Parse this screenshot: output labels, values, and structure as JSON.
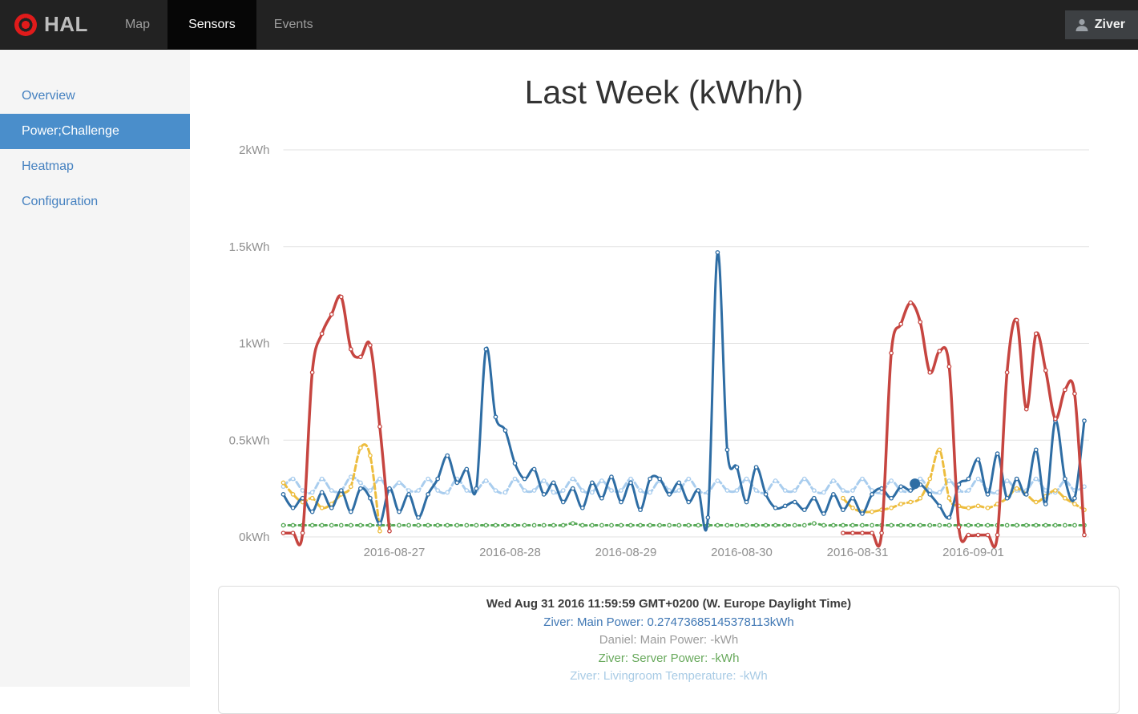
{
  "navbar": {
    "brand": "HAL",
    "items": [
      {
        "label": "Map",
        "active": false
      },
      {
        "label": "Sensors",
        "active": true
      },
      {
        "label": "Events",
        "active": false
      }
    ],
    "user": "Ziver"
  },
  "sidebar": {
    "items": [
      {
        "label": "Overview",
        "active": false
      },
      {
        "label": "Power;Challenge",
        "active": true
      },
      {
        "label": "Heatmap",
        "active": false
      },
      {
        "label": "Configuration",
        "active": false
      }
    ]
  },
  "chart": {
    "title": "Last Week (kWh/h)"
  },
  "chart_data": {
    "type": "line",
    "title": "Last Week (kWh/h)",
    "x_axis": {
      "unit": "hours from 2016-08-26 00:00",
      "range": [
        0,
        168
      ],
      "tick_hours": [
        24,
        48,
        72,
        96,
        120,
        144
      ],
      "tick_labels": [
        "2016-08-27",
        "2016-08-28",
        "2016-08-29",
        "2016-08-30",
        "2016-08-31",
        "2016-09-01"
      ]
    },
    "y_axis": {
      "ticks": [
        0,
        0.5,
        1,
        1.5,
        2
      ],
      "tick_labels": [
        "0kWh",
        "0.5kWh",
        "1kWh",
        "1.5kWh",
        "2kWh"
      ],
      "range": [
        0,
        2.07
      ],
      "unit": "kWh"
    },
    "grid": "horizontal",
    "legend_position": "bottom-panel",
    "start_hour": 1,
    "step_hours": 2,
    "series": [
      {
        "name": "lightblue-livingroom-temperature",
        "color": "#a9cdee",
        "style": "dashed",
        "values": [
          0.26,
          0.3,
          0.24,
          0.23,
          0.3,
          0.24,
          0.24,
          0.31,
          0.28,
          0.24,
          0.3,
          0.24,
          0.28,
          0.24,
          0.24,
          0.3,
          0.24,
          0.23,
          0.3,
          0.24,
          0.24,
          0.29,
          0.24,
          0.23,
          0.3,
          0.24,
          0.24,
          0.29,
          0.23,
          0.24,
          0.3,
          0.24,
          0.23,
          0.29,
          0.24,
          0.24,
          0.3,
          0.24,
          0.23,
          0.29,
          0.24,
          0.24,
          0.3,
          0.24,
          0.23,
          0.29,
          0.24,
          0.24,
          0.3,
          0.24,
          0.23,
          0.29,
          0.24,
          0.24,
          0.3,
          0.24,
          0.23,
          0.29,
          0.24,
          0.24,
          0.3,
          0.24,
          0.23,
          0.29,
          0.24,
          0.24,
          0.3,
          0.24,
          0.23,
          0.29,
          0.24,
          0.24,
          0.3,
          0.24,
          0.23,
          0.29,
          0.24,
          0.24,
          0.3,
          0.24,
          0.23,
          0.29,
          0.24,
          0.26
        ]
      },
      {
        "name": "green-server-power",
        "color": "#57a957",
        "style": "dotted",
        "values": [
          0.06,
          0.06,
          0.06,
          0.06,
          0.06,
          0.06,
          0.06,
          0.06,
          0.06,
          0.06,
          0.06,
          0.06,
          0.06,
          0.06,
          0.06,
          0.06,
          0.06,
          0.06,
          0.06,
          0.06,
          0.06,
          0.06,
          0.06,
          0.06,
          0.06,
          0.06,
          0.06,
          0.06,
          0.06,
          0.06,
          0.07,
          0.06,
          0.06,
          0.06,
          0.06,
          0.06,
          0.06,
          0.06,
          0.06,
          0.06,
          0.06,
          0.06,
          0.06,
          0.06,
          0.06,
          0.06,
          0.06,
          0.06,
          0.06,
          0.06,
          0.06,
          0.06,
          0.06,
          0.06,
          0.06,
          0.07,
          0.06,
          0.06,
          0.06,
          0.06,
          0.06,
          0.06,
          0.06,
          0.06,
          0.06,
          0.06,
          0.06,
          0.06,
          0.06,
          0.06,
          0.06,
          0.06,
          0.06,
          0.06,
          0.06,
          0.06,
          0.06,
          0.06,
          0.06,
          0.06,
          0.06,
          0.06,
          0.06,
          0.06
        ]
      },
      {
        "name": "yellow",
        "color": "#edbd3e",
        "style": "dashed",
        "values": [
          0.28,
          0.22,
          0.18,
          0.2,
          0.15,
          0.17,
          0.22,
          0.26,
          0.46,
          0.42,
          0.03,
          null,
          null,
          null,
          null,
          null,
          null,
          null,
          null,
          null,
          null,
          null,
          null,
          null,
          null,
          null,
          null,
          null,
          null,
          null,
          null,
          null,
          null,
          null,
          null,
          null,
          null,
          null,
          null,
          null,
          null,
          null,
          null,
          null,
          null,
          null,
          null,
          null,
          null,
          null,
          null,
          null,
          null,
          null,
          null,
          null,
          null,
          null,
          0.2,
          0.15,
          0.13,
          0.13,
          0.14,
          0.15,
          0.17,
          0.18,
          0.2,
          0.3,
          0.45,
          0.2,
          0.16,
          0.15,
          0.16,
          0.15,
          0.17,
          0.2,
          0.25,
          0.22,
          0.18,
          0.21,
          0.24,
          0.2,
          0.17,
          0.14
        ]
      },
      {
        "name": "blue-main-power",
        "label": "Ziver: Main Power",
        "color": "#2e6da4",
        "style": "solid",
        "values": [
          0.22,
          0.15,
          0.2,
          0.13,
          0.23,
          0.15,
          0.24,
          0.13,
          0.25,
          0.2,
          0.07,
          0.25,
          0.13,
          0.22,
          0.1,
          0.22,
          0.3,
          0.42,
          0.28,
          0.35,
          0.25,
          0.97,
          0.62,
          0.55,
          0.38,
          0.3,
          0.35,
          0.22,
          0.28,
          0.18,
          0.25,
          0.15,
          0.28,
          0.2,
          0.31,
          0.18,
          0.28,
          0.14,
          0.3,
          0.3,
          0.22,
          0.28,
          0.18,
          0.24,
          0.1,
          1.47,
          0.45,
          0.36,
          0.18,
          0.36,
          0.22,
          0.15,
          0.16,
          0.18,
          0.14,
          0.2,
          0.12,
          0.22,
          0.14,
          0.2,
          0.12,
          0.22,
          0.25,
          0.2,
          0.26,
          0.24,
          0.27,
          0.22,
          0.16,
          0.1,
          0.27,
          0.3,
          0.4,
          0.22,
          0.43,
          0.2,
          0.3,
          0.22,
          0.45,
          0.17,
          0.6,
          0.3,
          0.2,
          0.6
        ]
      },
      {
        "name": "red-main-power",
        "color": "#c64540",
        "style": "solid",
        "values": [
          0.02,
          0.02,
          0.02,
          0.85,
          1.05,
          1.15,
          1.24,
          0.97,
          0.93,
          0.99,
          0.57,
          0.03,
          null,
          null,
          null,
          null,
          null,
          null,
          null,
          null,
          null,
          null,
          null,
          null,
          null,
          null,
          null,
          null,
          null,
          null,
          null,
          null,
          null,
          null,
          null,
          null,
          null,
          null,
          null,
          null,
          null,
          null,
          null,
          null,
          null,
          null,
          null,
          null,
          null,
          null,
          null,
          null,
          null,
          null,
          null,
          null,
          null,
          null,
          0.02,
          0.02,
          0.02,
          0.02,
          0.02,
          0.95,
          1.1,
          1.21,
          1.11,
          0.85,
          0.96,
          0.88,
          0.05,
          0.01,
          0.01,
          0.01,
          0.01,
          0.85,
          1.12,
          0.66,
          1.05,
          0.86,
          0.61,
          0.76,
          0.74,
          0.01
        ]
      }
    ],
    "highlight_point": {
      "series": "blue-main-power",
      "hour": 131.9,
      "value": 0.27473685145378113,
      "color": "#2e6da4"
    }
  },
  "tooltip": {
    "timestamp": "Wed Aug 31 2016 11:59:59 GMT+0200 (W. Europe Daylight Time)",
    "entries": [
      {
        "text": "Ziver: Main Power: 0.27473685145378113kWh",
        "color": "#3f77b4"
      },
      {
        "text": "Daniel: Main Power: -kWh",
        "color": "#9b9b9b"
      },
      {
        "text": "Ziver: Server Power: -kWh",
        "color": "#68a95c"
      },
      {
        "text": "Ziver: Livingroom Temperature: -kWh",
        "color": "#a8cbe5"
      }
    ]
  }
}
